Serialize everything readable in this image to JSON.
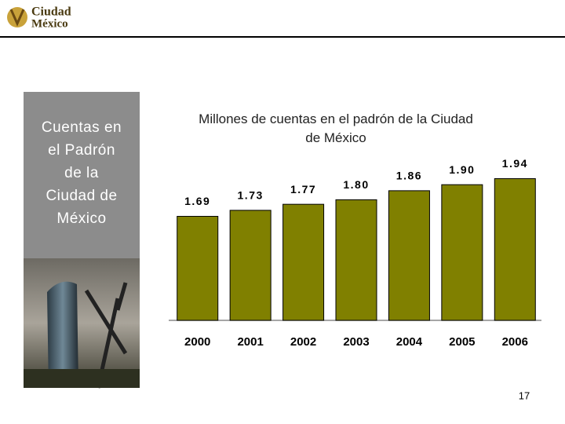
{
  "header": {
    "logo_line1": "Ciudad",
    "logo_line2": "México"
  },
  "sidebar": {
    "lines": [
      "Cuentas en",
      "el Padrón",
      "de la",
      "Ciudad de",
      "México"
    ]
  },
  "chart_data": {
    "type": "bar",
    "title": "Millones de cuentas en el padrón de la Ciudad de México",
    "categories": [
      "2000",
      "2001",
      "2002",
      "2003",
      "2004",
      "2005",
      "2006"
    ],
    "values": [
      1.69,
      1.73,
      1.77,
      1.8,
      1.86,
      1.9,
      1.94
    ],
    "value_labels": [
      "1.69",
      "1.73",
      "1.77",
      "1.80",
      "1.86",
      "1.90",
      "1.94"
    ],
    "color": "#808000",
    "ylim": [
      1.0,
      2.0
    ]
  },
  "page_number": "17"
}
